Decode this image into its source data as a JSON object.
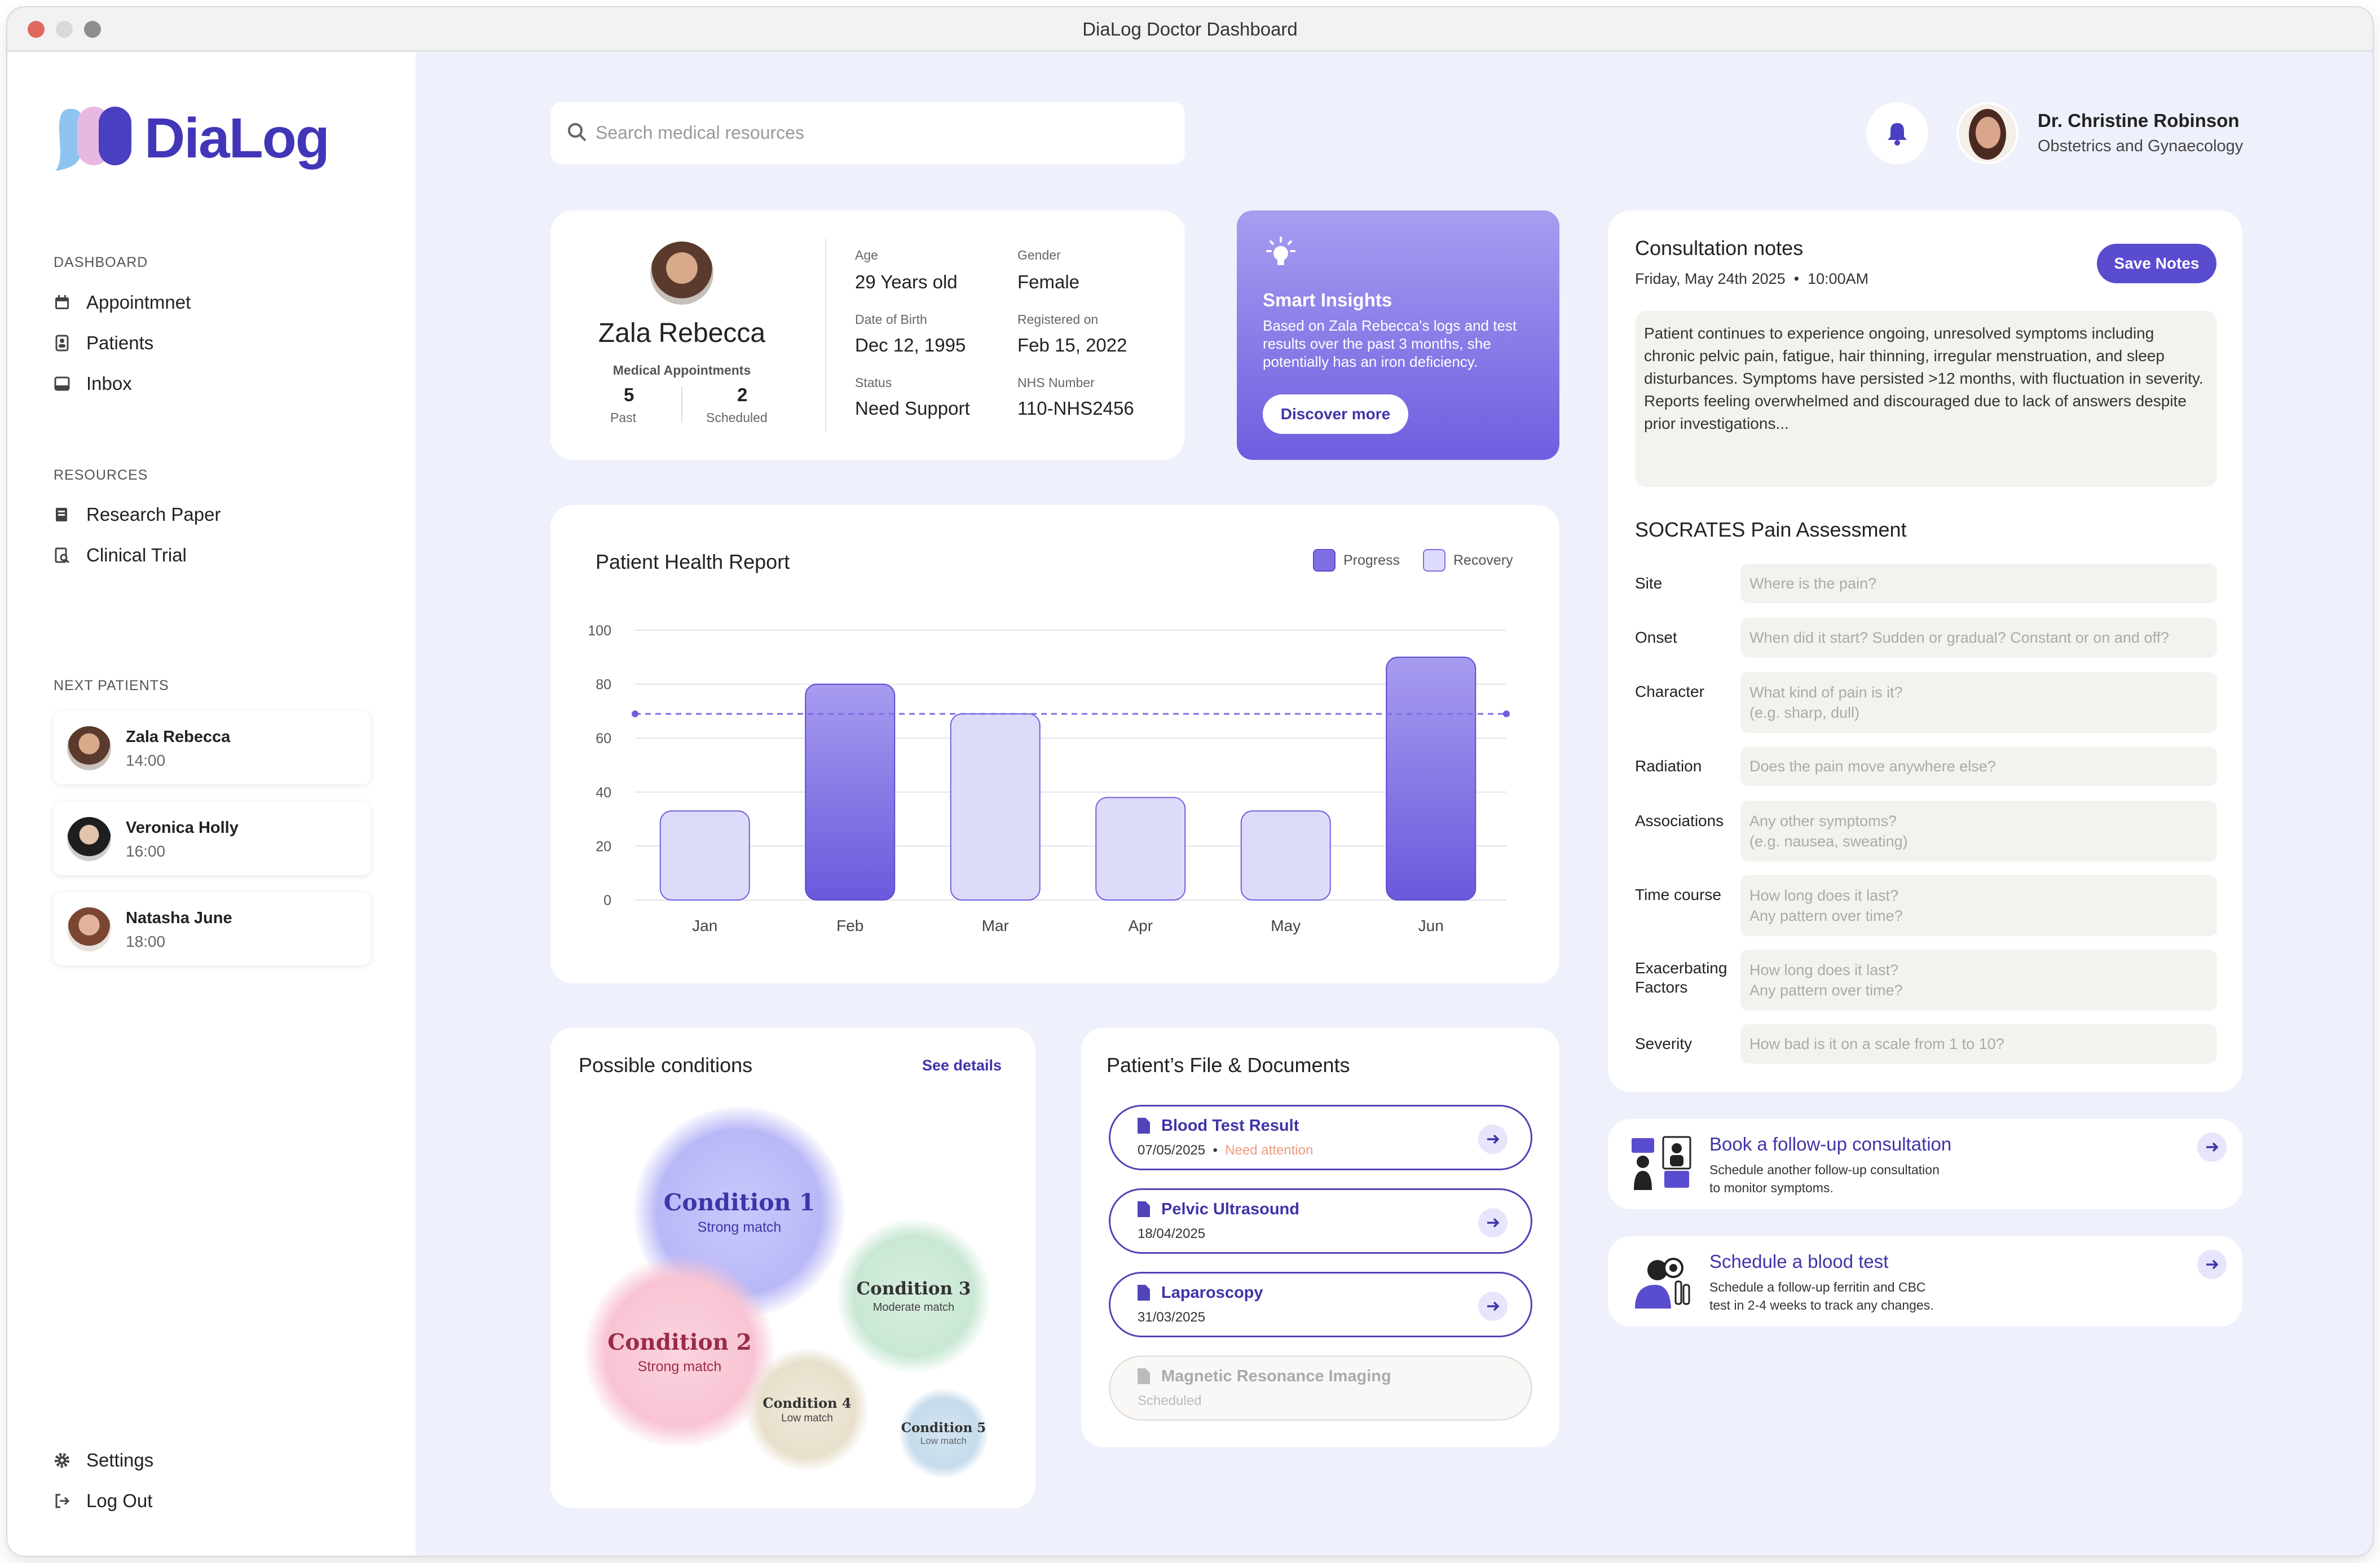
{
  "window": {
    "title": "DiaLog Doctor Dashboard"
  },
  "brand": {
    "name": "DiaLog",
    "colors": {
      "accent": "#4236b8",
      "background": "#eef0fc"
    }
  },
  "sidebar": {
    "dashboard_label": "DASHBOARD",
    "dashboard_items": [
      {
        "label": "Appointmnet",
        "icon": "calendar-icon"
      },
      {
        "label": "Patients",
        "icon": "patients-icon"
      },
      {
        "label": "Inbox",
        "icon": "inbox-icon"
      }
    ],
    "resources_label": "RESOURCES",
    "resources_items": [
      {
        "label": "Research Paper",
        "icon": "document-icon"
      },
      {
        "label": "Clinical Trial",
        "icon": "search-document-icon"
      }
    ],
    "next_label": "NEXT PATIENTS",
    "next_patients": [
      {
        "name": "Zala Rebecca",
        "time": "14:00"
      },
      {
        "name": "Veronica Holly",
        "time": "16:00"
      },
      {
        "name": "Natasha June",
        "time": "18:00"
      }
    ],
    "settings": "Settings",
    "logout": "Log Out"
  },
  "header": {
    "search_placeholder": "Search medical resources",
    "user_name": "Dr. Christine Robinson",
    "user_role": "Obstetrics and Gynaecology"
  },
  "patient": {
    "name": "Zala Rebecca",
    "appointments_label": "Medical Appointments",
    "past_count": "5",
    "past_label": "Past",
    "scheduled_count": "2",
    "scheduled_label": "Scheduled",
    "age_label": "Age",
    "age": "29 Years old",
    "gender_label": "Gender",
    "gender": "Female",
    "dob_label": "Date of Birth",
    "dob": "Dec 12, 1995",
    "registered_label": "Registered on",
    "registered": "Feb 15, 2022",
    "status_label": "Status",
    "status": "Need Support",
    "nhs_label": "NHS Number",
    "nhs": "110-NHS2456"
  },
  "insights": {
    "title": "Smart Insights",
    "text": "Based on Zala Rebecca's logs and test results over the past 3 months, she potentially has an iron deficiency.",
    "button": "Discover more"
  },
  "chart_data": {
    "type": "bar",
    "title": "Patient Health Report",
    "categories": [
      "Jan",
      "Feb",
      "Mar",
      "Apr",
      "May",
      "Jun"
    ],
    "values": [
      33,
      80,
      69,
      38,
      33,
      90
    ],
    "bar_series": [
      "Recovery",
      "Progress",
      "Recovery",
      "Recovery",
      "Recovery",
      "Progress"
    ],
    "legend": [
      "Progress",
      "Recovery"
    ],
    "legend_position": "top-right",
    "reference_line": 69,
    "ylim": [
      0,
      100
    ],
    "yticks": [
      "100",
      "80",
      "60",
      "40",
      "20",
      "0"
    ],
    "grid": true,
    "colors": {
      "Progress": "#6f5fe0",
      "Recovery": "#dcdcfa"
    }
  },
  "conditions": {
    "title": "Possible conditions",
    "see_details": "See details",
    "items": [
      {
        "name": "Condition 1",
        "match": "Strong match"
      },
      {
        "name": "Condition 2",
        "match": "Strong match"
      },
      {
        "name": "Condition 3",
        "match": "Moderate match"
      },
      {
        "name": "Condition 4",
        "match": "Low match"
      },
      {
        "name": "Condition 5",
        "match": "Low match"
      }
    ]
  },
  "files": {
    "title": "Patient’s File & Documents",
    "items": [
      {
        "name": "Blood Test Result",
        "date": "07/05/2025",
        "flag": "Need attention"
      },
      {
        "name": "Pelvic Ultrasound",
        "date": "18/04/2025"
      },
      {
        "name": "Laparoscopy",
        "date": "31/03/2025"
      },
      {
        "name": "Magnetic Resonance Imaging",
        "date": "Scheduled"
      }
    ]
  },
  "notes": {
    "title": "Consultation notes",
    "date": "Friday, May 24th 2025",
    "time": "10:00AM",
    "save": "Save Notes",
    "text": "Patient continues to experience ongoing, unresolved symptoms including chronic pelvic pain, fatigue, hair thinning, irregular menstruation, and sleep disturbances. Symptoms have persisted >12 months, with fluctuation in severity. Reports feeling overwhelmed and discouraged due to lack of answers despite prior investigations..."
  },
  "socrates": {
    "title": "SOCRATES Pain Assessment",
    "rows": [
      {
        "label": "Site",
        "placeholder": "Where is the pain?"
      },
      {
        "label": "Onset",
        "placeholder": "When did it start? Sudden or gradual? Constant or on and off?"
      },
      {
        "label": "Character",
        "placeholder": "What kind of pain is it?",
        "placeholder2": "(e.g. sharp, dull)"
      },
      {
        "label": "Radiation",
        "placeholder": "Does the pain move anywhere else?"
      },
      {
        "label": "Associations",
        "placeholder": "Any other symptoms?",
        "placeholder2": "(e.g. nausea, sweating)"
      },
      {
        "label": "Time course",
        "placeholder": "How long does it last?",
        "placeholder2": "Any pattern over time?"
      },
      {
        "label": "Exacerbating",
        "label2": "Factors",
        "placeholder": "How long does it last?",
        "placeholder2": "Any pattern over time?"
      },
      {
        "label": "Severity",
        "placeholder": "How bad is it on a scale from 1 to 10?"
      }
    ]
  },
  "actions": [
    {
      "title": "Book a follow-up consultation",
      "line1": "Schedule another follow-up consultation",
      "line2": "to monitor symptoms."
    },
    {
      "title": "Schedule a blood test",
      "line1": "Schedule a follow-up ferritin and CBC",
      "line2": "test in 2-4 weeks to track any changes."
    }
  ]
}
